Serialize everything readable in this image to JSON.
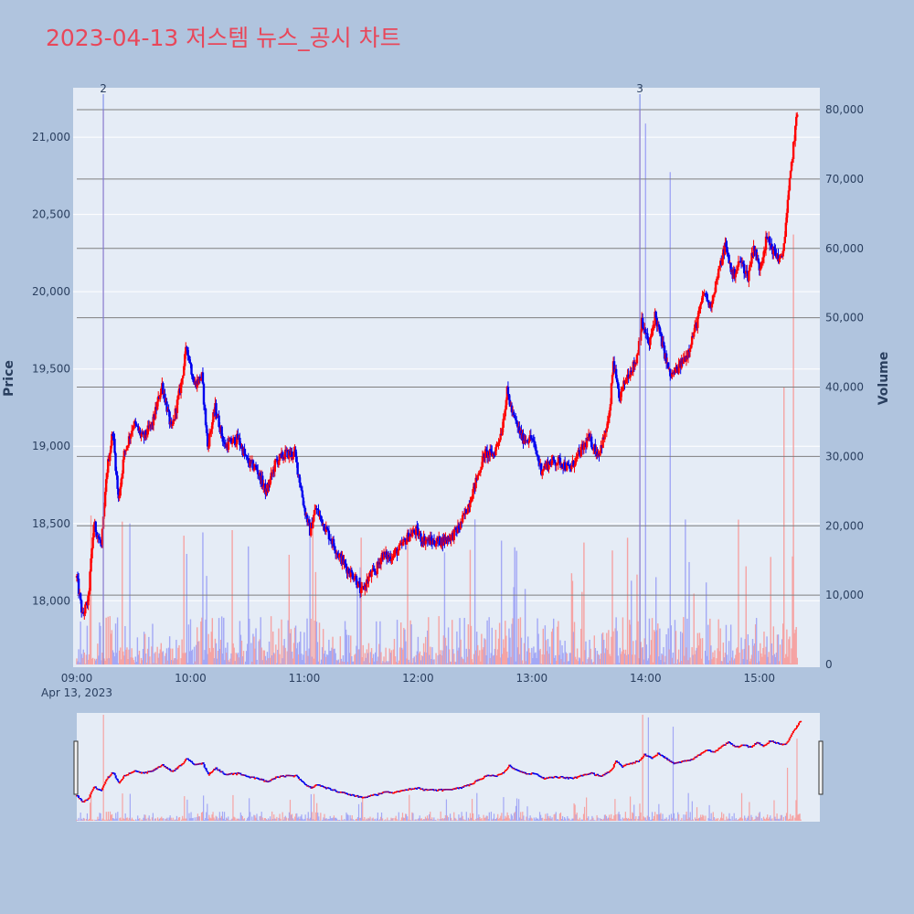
{
  "title": "2023-04-13 저스템 뉴스_공시 차트",
  "colors": {
    "background": "#b0c4de",
    "plot_bg": "#e5ecf6",
    "up": "#ff0000",
    "down": "#0000ee",
    "title": "#e8475a",
    "hline": "#7f7f7f"
  },
  "chart_data": {
    "type": "candlestick",
    "title": "2023-04-13 저스템 뉴스_공시 차트",
    "date_label": "Apr 13, 2023",
    "xlabel": "",
    "ylabel": "Price",
    "y2label": "Volume",
    "x_ticks": [
      "09:00",
      "10:00",
      "11:00",
      "12:00",
      "13:00",
      "14:00",
      "15:00"
    ],
    "x_range": [
      "09:00",
      "15:30"
    ],
    "price_ticks": [
      18000,
      18500,
      19000,
      19500,
      20000,
      20500,
      21000
    ],
    "price_tick_labels": [
      "18,000",
      "18,500",
      "19,000",
      "19,500",
      "20,000",
      "20,500",
      "21,000"
    ],
    "price_range": [
      17570,
      21320
    ],
    "volume_ticks": [
      0,
      10000,
      20000,
      30000,
      40000,
      50000,
      60000,
      70000,
      80000
    ],
    "volume_tick_labels": [
      "0",
      "10,000",
      "20,000",
      "30,000",
      "40,000",
      "50,000",
      "60,000",
      "70,000",
      "80,000"
    ],
    "volume_range": [
      0,
      80000
    ],
    "annotations": [
      {
        "time": "09:14",
        "label": "2"
      },
      {
        "time": "13:57",
        "label": "3"
      }
    ],
    "price_keypoints": [
      [
        "09:00",
        18150
      ],
      [
        "09:03",
        17900
      ],
      [
        "09:06",
        18000
      ],
      [
        "09:09",
        18500
      ],
      [
        "09:13",
        18350
      ],
      [
        "09:16",
        18850
      ],
      [
        "09:19",
        19100
      ],
      [
        "09:22",
        18650
      ],
      [
        "09:25",
        18950
      ],
      [
        "09:30",
        19150
      ],
      [
        "09:35",
        19050
      ],
      [
        "09:40",
        19150
      ],
      [
        "09:45",
        19400
      ],
      [
        "09:50",
        19100
      ],
      [
        "09:55",
        19400
      ],
      [
        "09:58",
        19650
      ],
      [
        "10:02",
        19400
      ],
      [
        "10:06",
        19450
      ],
      [
        "10:09",
        19000
      ],
      [
        "10:13",
        19250
      ],
      [
        "10:18",
        19000
      ],
      [
        "10:25",
        19050
      ],
      [
        "10:30",
        18900
      ],
      [
        "10:35",
        18850
      ],
      [
        "10:40",
        18700
      ],
      [
        "10:45",
        18900
      ],
      [
        "10:50",
        18950
      ],
      [
        "10:55",
        18950
      ],
      [
        "10:58",
        18750
      ],
      [
        "11:00",
        18600
      ],
      [
        "11:03",
        18450
      ],
      [
        "11:06",
        18600
      ],
      [
        "11:12",
        18450
      ],
      [
        "11:18",
        18300
      ],
      [
        "11:23",
        18200
      ],
      [
        "11:27",
        18150
      ],
      [
        "11:30",
        18050
      ],
      [
        "11:34",
        18150
      ],
      [
        "11:38",
        18200
      ],
      [
        "11:41",
        18300
      ],
      [
        "11:45",
        18280
      ],
      [
        "11:50",
        18330
      ],
      [
        "11:55",
        18420
      ],
      [
        "11:59",
        18450
      ],
      [
        "12:02",
        18400
      ],
      [
        "12:08",
        18380
      ],
      [
        "12:13",
        18390
      ],
      [
        "12:18",
        18420
      ],
      [
        "12:22",
        18480
      ],
      [
        "12:26",
        18600
      ],
      [
        "12:30",
        18750
      ],
      [
        "12:35",
        18950
      ],
      [
        "12:40",
        18950
      ],
      [
        "12:44",
        19100
      ],
      [
        "12:47",
        19350
      ],
      [
        "12:50",
        19200
      ],
      [
        "12:55",
        19050
      ],
      [
        "13:00",
        19050
      ],
      [
        "13:05",
        18850
      ],
      [
        "13:10",
        18900
      ],
      [
        "13:15",
        18900
      ],
      [
        "13:20",
        18850
      ],
      [
        "13:25",
        18950
      ],
      [
        "13:30",
        19050
      ],
      [
        "13:35",
        18950
      ],
      [
        "13:38",
        19050
      ],
      [
        "13:41",
        19200
      ],
      [
        "13:43",
        19550
      ],
      [
        "13:46",
        19300
      ],
      [
        "13:50",
        19450
      ],
      [
        "13:55",
        19550
      ],
      [
        "13:58",
        19800
      ],
      [
        "14:02",
        19650
      ],
      [
        "14:05",
        19850
      ],
      [
        "14:09",
        19650
      ],
      [
        "14:13",
        19450
      ],
      [
        "14:17",
        19500
      ],
      [
        "14:22",
        19600
      ],
      [
        "14:27",
        19800
      ],
      [
        "14:31",
        20000
      ],
      [
        "14:34",
        19900
      ],
      [
        "14:38",
        20100
      ],
      [
        "14:42",
        20300
      ],
      [
        "14:46",
        20100
      ],
      [
        "14:50",
        20200
      ],
      [
        "14:54",
        20100
      ],
      [
        "14:57",
        20300
      ],
      [
        "15:00",
        20150
      ],
      [
        "15:04",
        20350
      ],
      [
        "15:08",
        20250
      ],
      [
        "15:12",
        20200
      ],
      [
        "15:14",
        20450
      ],
      [
        "15:16",
        20700
      ],
      [
        "15:18",
        20950
      ],
      [
        "15:20",
        21150
      ]
    ]
  }
}
